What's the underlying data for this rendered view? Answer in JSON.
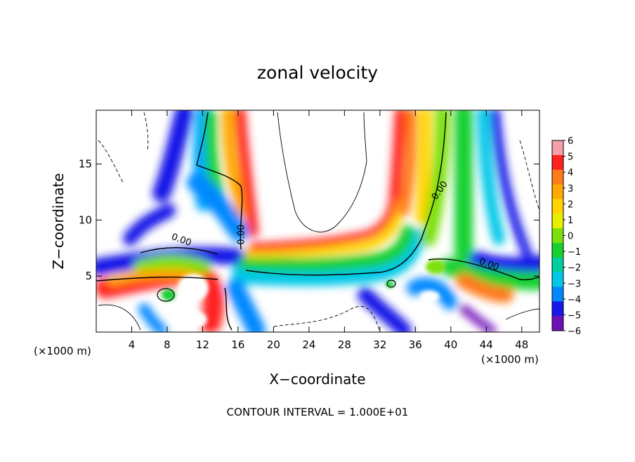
{
  "chart_data": {
    "type": "heatmap",
    "title": "zonal velocity",
    "xlabel": "X−coordinate",
    "ylabel": "Z−coordinate",
    "x_unit_left": "(×1000 m)",
    "x_unit_right": "(×1000 m)",
    "footer": "CONTOUR INTERVAL = 1.000E+01",
    "xlim": [
      0,
      50
    ],
    "ylim": [
      0,
      19.8
    ],
    "x_ticks": [
      4,
      8,
      12,
      16,
      20,
      24,
      28,
      32,
      36,
      40,
      44,
      48
    ],
    "y_ticks": [
      5,
      10,
      15
    ],
    "colorbar": {
      "range": [
        -6,
        6
      ],
      "ticks": [
        "6",
        "5",
        "4",
        "3",
        "2",
        "1",
        "0",
        "−1",
        "−2",
        "−3",
        "−4",
        "−5",
        "−6"
      ],
      "colors": [
        "#f4a0a8",
        "#ff2020",
        "#ff7a1a",
        "#ffa800",
        "#ffd400",
        "#e8f000",
        "#7ce00a",
        "#18d030",
        "#00d0a0",
        "#00c8e8",
        "#0088ff",
        "#1818e8",
        "#7010b8"
      ]
    },
    "contour_labels": [
      {
        "text": "0.00",
        "x": 9.5,
        "y": 8.0
      },
      {
        "text": "0.00",
        "x": 16.7,
        "y": 8.7
      },
      {
        "text": "0.00",
        "x": 39.0,
        "y": 12.5
      },
      {
        "text": "0.00",
        "x": 44.2,
        "y": 5.8
      }
    ]
  }
}
